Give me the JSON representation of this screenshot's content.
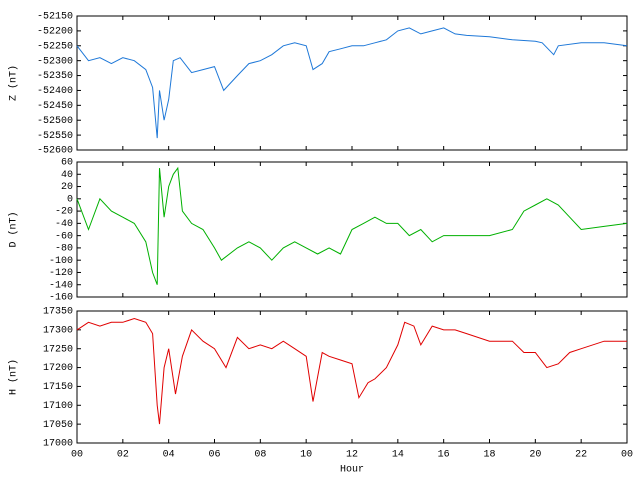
{
  "chart_data": [
    {
      "type": "line",
      "ylabel": "Z (nT)",
      "xlim": [
        0,
        24
      ],
      "ylim": [
        -52600,
        -52150
      ],
      "yticks": [
        -52150,
        -52200,
        -52250,
        -52300,
        -52350,
        -52400,
        -52450,
        -52500,
        -52550,
        -52600
      ],
      "x": [
        0,
        0.5,
        1,
        1.5,
        2,
        2.5,
        3,
        3.3,
        3.5,
        3.6,
        3.8,
        4,
        4.2,
        4.5,
        5,
        5.5,
        6,
        6.4,
        7,
        7.5,
        8,
        8.5,
        9,
        9.5,
        10,
        10.3,
        10.7,
        11,
        11.5,
        12,
        12.5,
        13,
        13.5,
        14,
        14.5,
        15,
        15.5,
        16,
        16.5,
        17,
        18,
        19,
        20,
        20.3,
        20.8,
        21,
        22,
        23,
        24
      ],
      "series": [
        {
          "color": "#1e78d8",
          "values": [
            -52250,
            -52300,
            -52290,
            -52310,
            -52290,
            -52300,
            -52330,
            -52390,
            -52560,
            -52400,
            -52500,
            -52430,
            -52300,
            -52290,
            -52340,
            -52330,
            -52320,
            -52400,
            -52350,
            -52310,
            -52300,
            -52280,
            -52250,
            -52240,
            -52250,
            -52330,
            -52310,
            -52270,
            -52260,
            -52250,
            -52250,
            -52240,
            -52230,
            -52200,
            -52190,
            -52210,
            -52200,
            -52190,
            -52210,
            -52215,
            -52220,
            -52230,
            -52235,
            -52240,
            -52280,
            -52250,
            -52240,
            -52240,
            -52250
          ]
        }
      ]
    },
    {
      "type": "line",
      "ylabel": "D (nT)",
      "xlim": [
        0,
        24
      ],
      "ylim": [
        -160,
        60
      ],
      "yticks": [
        60,
        40,
        20,
        0,
        -20,
        -40,
        -60,
        -80,
        -100,
        -120,
        -140,
        -160
      ],
      "x": [
        0,
        0.5,
        1,
        1.5,
        2,
        2.5,
        3,
        3.3,
        3.5,
        3.6,
        3.8,
        4,
        4.2,
        4.4,
        4.6,
        5,
        5.5,
        6,
        6.3,
        7,
        7.5,
        8,
        8.5,
        9,
        9.5,
        10,
        10.5,
        11,
        11.5,
        12,
        12.5,
        13,
        13.5,
        14,
        14.5,
        15,
        15.5,
        16,
        17,
        18,
        19,
        19.5,
        20,
        20.5,
        21,
        21.5,
        22,
        23,
        24
      ],
      "series": [
        {
          "color": "#00b000",
          "values": [
            0,
            -50,
            0,
            -20,
            -30,
            -40,
            -70,
            -120,
            -140,
            50,
            -30,
            20,
            40,
            50,
            -20,
            -40,
            -50,
            -80,
            -100,
            -80,
            -70,
            -80,
            -100,
            -80,
            -70,
            -80,
            -90,
            -80,
            -90,
            -50,
            -40,
            -30,
            -40,
            -40,
            -60,
            -50,
            -70,
            -60,
            -60,
            -60,
            -50,
            -20,
            -10,
            0,
            -10,
            -30,
            -50,
            -45,
            -40
          ]
        }
      ]
    },
    {
      "type": "line",
      "ylabel": "H (nT)",
      "xlabel": "Hour",
      "xlim": [
        0,
        24
      ],
      "ylim": [
        17000,
        17350
      ],
      "yticks": [
        17350,
        17300,
        17250,
        17200,
        17150,
        17100,
        17050,
        17000
      ],
      "xticks": [
        {
          "value": 0,
          "label": "00"
        },
        {
          "value": 2,
          "label": "02"
        },
        {
          "value": 4,
          "label": "04"
        },
        {
          "value": 6,
          "label": "06"
        },
        {
          "value": 8,
          "label": "08"
        },
        10,
        12,
        14,
        16,
        18,
        20,
        22,
        {
          "value": 24,
          "label": "00"
        }
      ],
      "x": [
        0,
        0.5,
        1,
        1.5,
        2,
        2.5,
        3,
        3.3,
        3.5,
        3.6,
        3.8,
        4,
        4.3,
        4.6,
        5,
        5.5,
        6,
        6.5,
        7,
        7.5,
        8,
        8.5,
        9,
        9.5,
        10,
        10.3,
        10.7,
        11,
        11.5,
        12,
        12.3,
        12.7,
        13,
        13.5,
        14,
        14.3,
        14.7,
        15,
        15.5,
        16,
        16.5,
        17,
        18,
        19,
        19.5,
        20,
        20.5,
        21,
        21.5,
        22,
        23,
        24
      ],
      "series": [
        {
          "color": "#e00000",
          "values": [
            17300,
            17320,
            17310,
            17320,
            17320,
            17330,
            17320,
            17290,
            17100,
            17050,
            17200,
            17250,
            17130,
            17230,
            17300,
            17270,
            17250,
            17200,
            17280,
            17250,
            17260,
            17250,
            17270,
            17250,
            17230,
            17110,
            17240,
            17230,
            17220,
            17210,
            17120,
            17160,
            17170,
            17200,
            17260,
            17320,
            17310,
            17260,
            17310,
            17300,
            17300,
            17290,
            17270,
            17270,
            17240,
            17240,
            17200,
            17210,
            17240,
            17250,
            17270,
            17270
          ]
        }
      ]
    }
  ]
}
